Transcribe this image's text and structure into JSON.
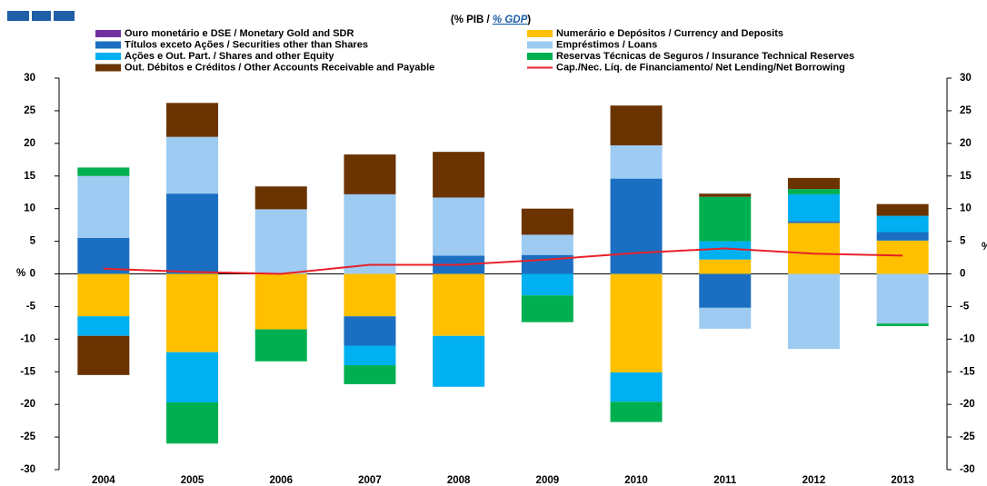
{
  "chart_data": {
    "type": "bar",
    "subtitle": [
      "(% PIB / ",
      "% GDP",
      ")"
    ],
    "y_label": "%",
    "y2_label": "%",
    "categories": [
      "2004",
      "2005",
      "2006",
      "2007",
      "2008",
      "2009",
      "2010",
      "2011",
      "2012",
      "2013"
    ],
    "series": [
      {
        "name": "Ouro monetário e DSE / Monetary Gold and SDR",
        "color": "#7030a0",
        "values": [
          0,
          0,
          0,
          0,
          0,
          0,
          0,
          0,
          0,
          0
        ]
      },
      {
        "name": "Numerário e Depósitos / Currency and Deposits",
        "color": "#ffc000",
        "values": [
          -6.5,
          -12,
          -8.5,
          -6.5,
          -9.5,
          0,
          -15.1,
          2.2,
          7.8,
          5.1
        ]
      },
      {
        "name": "Títulos exceto Ações / Securities other than Shares",
        "color": "#1b6fc2",
        "values": [
          5.5,
          12.3,
          0,
          -4.5,
          2.8,
          2.9,
          14.6,
          -5.2,
          0.3,
          1.3
        ]
      },
      {
        "name": "Empréstimos / Loans",
        "color": "#9dcbf2",
        "values": [
          9.5,
          8.7,
          9.9,
          12.2,
          8.9,
          3.1,
          5.1,
          -3.2,
          -11.5,
          -7.6
        ]
      },
      {
        "name": "Ações e Out. Part. / Shares and other Equity",
        "color": "#00b0f0",
        "values": [
          -3,
          -7.7,
          0,
          -3,
          -7.8,
          -3.3,
          -4.5,
          2.8,
          4.1,
          2.5
        ]
      },
      {
        "name": "Reservas Técnicas de Seguros / Insurance Technical Reserves",
        "color": "#00b050",
        "values": [
          1.3,
          -6.3,
          -4.9,
          -2.9,
          0,
          -4.1,
          -3.1,
          6.8,
          0.8,
          -0.4
        ]
      },
      {
        "name": "Out. Débitos e Créditos / Other Accounts Receivable and Payable",
        "color": "#6b3300",
        "values": [
          -6,
          5.2,
          3.5,
          6.1,
          7,
          4,
          6.1,
          0.5,
          1.7,
          1.8
        ]
      },
      {
        "name": "Cap./Nec. Líq. de Financiamento/ Net Lending/Net Borrowing",
        "color": "#e8202a",
        "type": "line",
        "values": [
          0.8,
          0.3,
          0,
          1.4,
          1.4,
          2.2,
          3.2,
          3.9,
          3.1,
          2.8
        ]
      }
    ],
    "ylim": [
      -30,
      30
    ],
    "yticks": [
      -30,
      -25,
      -20,
      -15,
      -10,
      -5,
      0,
      5,
      10,
      15,
      20,
      25,
      30
    ],
    "y2lim": [
      -30,
      30
    ],
    "y2ticks": [
      -30,
      -25,
      -20,
      -15,
      -10,
      -5,
      0,
      5,
      10,
      15,
      20,
      25,
      30
    ]
  }
}
